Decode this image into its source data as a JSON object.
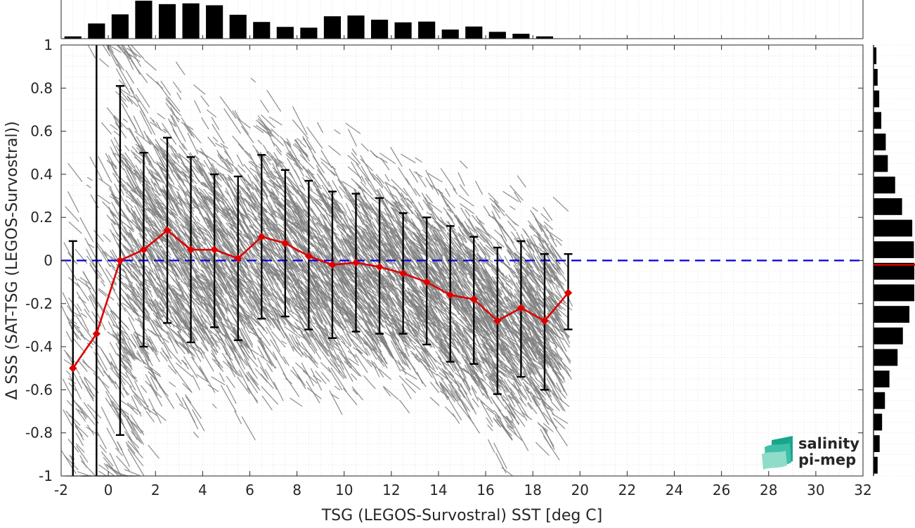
{
  "chart_data": {
    "type": "scatter",
    "xlabel": "TSG (LEGOS-Survostral) SST [deg C]",
    "ylabel": "Δ SSS (SAT-TSG (LEGOS-Survostral))",
    "xlim": [
      -2,
      32
    ],
    "ylim": [
      -1,
      1
    ],
    "x_ticks": [
      "-2",
      "0",
      "2",
      "4",
      "6",
      "8",
      "10",
      "12",
      "14",
      "16",
      "18",
      "20",
      "22",
      "24",
      "26",
      "28",
      "30",
      "32"
    ],
    "y_ticks": [
      "-1",
      "-0.8",
      "-0.6",
      "-0.4",
      "-0.2",
      "0",
      "0.2",
      "0.4",
      "0.6",
      "0.8",
      "1"
    ],
    "grid": true,
    "reference_line": {
      "y": 0,
      "color": "#0000dd",
      "style": "dashed"
    },
    "scatter_color": "#808080",
    "mean_series": {
      "color": "#dd0000",
      "x": [
        -1.5,
        -0.5,
        0.5,
        1.5,
        2.5,
        3.5,
        4.5,
        5.5,
        6.5,
        7.5,
        8.5,
        9.5,
        10.5,
        11.5,
        12.5,
        13.5,
        14.5,
        15.5,
        16.5,
        17.5,
        18.5,
        19.5
      ],
      "y": [
        -0.5,
        -0.34,
        0.0,
        0.05,
        0.14,
        0.05,
        0.05,
        0.01,
        0.11,
        0.08,
        0.02,
        -0.02,
        -0.01,
        -0.03,
        -0.06,
        -0.1,
        -0.16,
        -0.18,
        -0.28,
        -0.22,
        -0.28,
        -0.15
      ],
      "err_low": [
        -1.0,
        -1.0,
        -0.81,
        -0.4,
        -0.29,
        -0.38,
        -0.31,
        -0.37,
        -0.27,
        -0.26,
        -0.32,
        -0.36,
        -0.33,
        -0.34,
        -0.34,
        -0.39,
        -0.47,
        -0.48,
        -0.62,
        -0.54,
        -0.6,
        -0.32
      ],
      "err_high": [
        0.09,
        1.0,
        0.81,
        0.5,
        0.57,
        0.48,
        0.4,
        0.39,
        0.49,
        0.42,
        0.37,
        0.32,
        0.31,
        0.29,
        0.22,
        0.2,
        0.16,
        0.11,
        0.06,
        0.09,
        0.03,
        0.03
      ]
    },
    "top_histogram": {
      "x_centers": [
        -1.5,
        -0.5,
        0.5,
        1.5,
        2.5,
        3.5,
        4.5,
        5.5,
        6.5,
        7.5,
        8.5,
        9.5,
        10.5,
        11.5,
        12.5,
        13.5,
        14.5,
        15.5,
        16.5,
        17.5,
        18.5
      ],
      "values": [
        0.06,
        0.4,
        0.64,
        1.0,
        0.91,
        0.93,
        0.88,
        0.63,
        0.44,
        0.31,
        0.29,
        0.59,
        0.61,
        0.5,
        0.43,
        0.45,
        0.24,
        0.32,
        0.18,
        0.13,
        0.06
      ]
    },
    "right_histogram": {
      "y_centers": [
        0.95,
        0.85,
        0.75,
        0.65,
        0.55,
        0.45,
        0.35,
        0.25,
        0.15,
        0.05,
        -0.05,
        -0.15,
        -0.25,
        -0.35,
        -0.45,
        -0.55,
        -0.65,
        -0.75,
        -0.85,
        -0.95
      ],
      "values": [
        0.07,
        0.1,
        0.14,
        0.19,
        0.3,
        0.35,
        0.53,
        0.7,
        0.95,
        0.99,
        1.0,
        1.0,
        0.88,
        0.72,
        0.59,
        0.39,
        0.28,
        0.21,
        0.15,
        0.1
      ],
      "median_y": -0.02,
      "median_color": "#dd0000"
    }
  },
  "logo": {
    "line1": "salinity",
    "line2": "pi-mep",
    "color": "#1aa88e"
  }
}
